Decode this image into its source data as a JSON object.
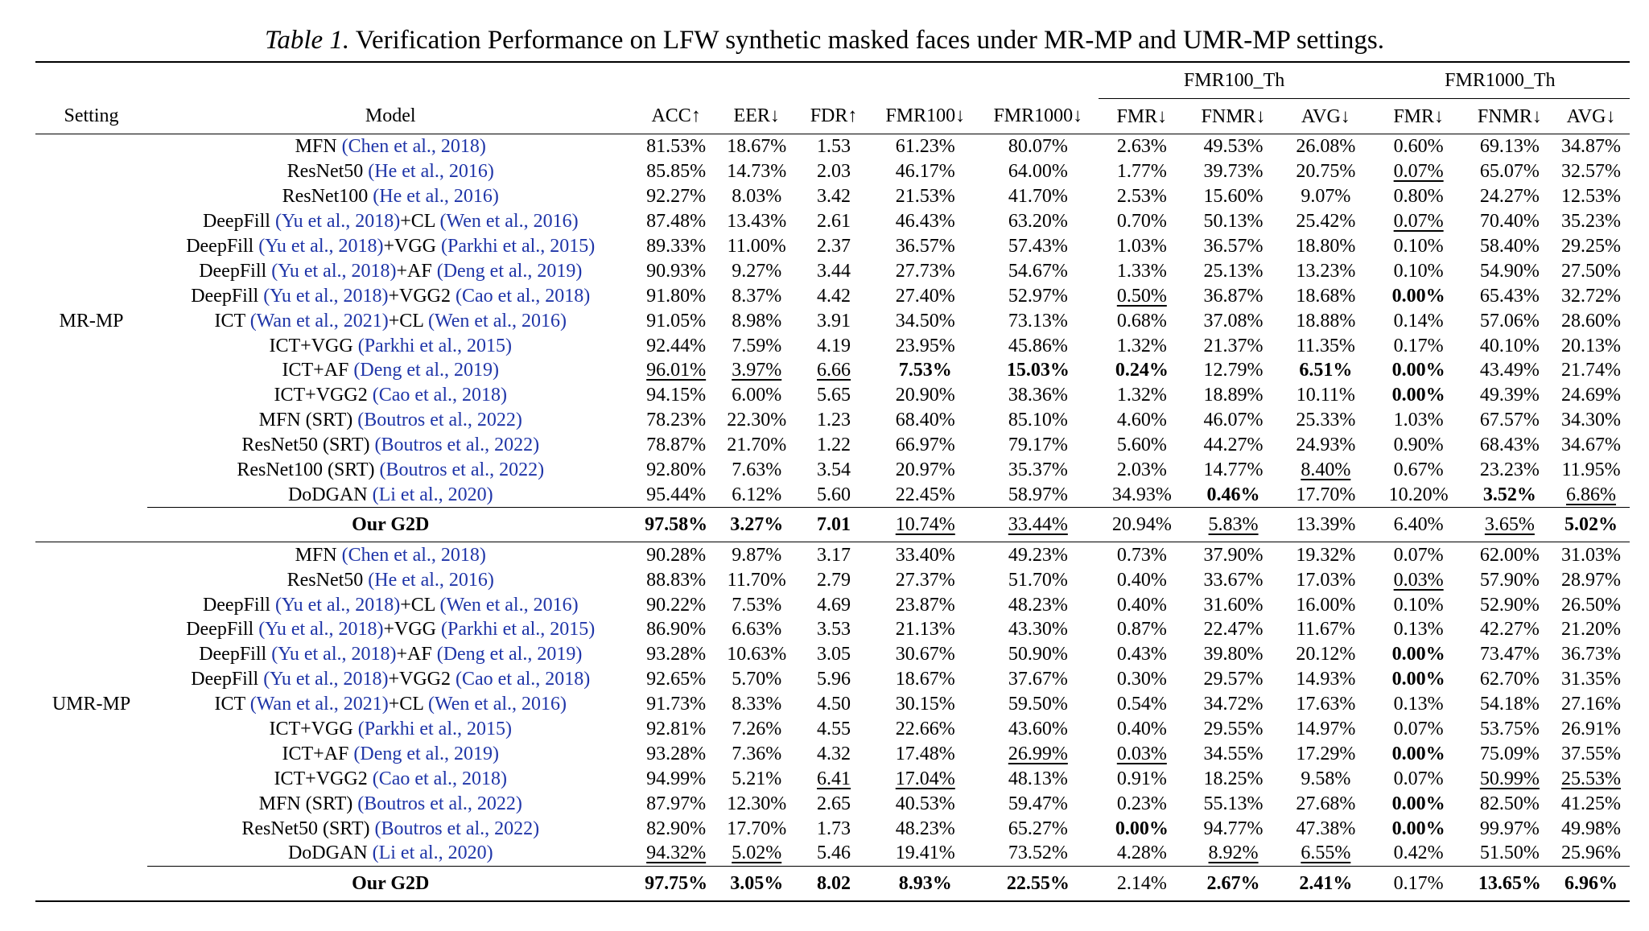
{
  "caption": {
    "label": "Table 1.",
    "text": "Verification Performance on LFW synthetic masked faces under MR-MP and UMR-MP settings."
  },
  "header": {
    "setting": "Setting",
    "model": "Model",
    "group1": "FMR100_Th",
    "group2": "FMR1000_Th",
    "cols": [
      "ACC↑",
      "EER↓",
      "FDR↑",
      "FMR100↓",
      "FMR1000↓",
      "FMR↓",
      "FNMR↓",
      "AVG↓",
      "FMR↓",
      "FNMR↓",
      "AVG↓"
    ]
  },
  "sections": [
    {
      "setting": "MR-MP",
      "rows": [
        {
          "name": [
            {
              "t": "MFN "
            },
            {
              "t": "(Chen et al., 2018)",
              "c": 1
            }
          ],
          "v": [
            "81.53%",
            "18.67%",
            "1.53",
            "61.23%",
            "80.07%",
            "2.63%",
            "49.53%",
            "26.08%",
            "0.60%",
            "69.13%",
            "34.87%"
          ]
        },
        {
          "name": [
            {
              "t": "ResNet50 "
            },
            {
              "t": "(He et al., 2016)",
              "c": 1
            }
          ],
          "v": [
            "85.85%",
            "14.73%",
            "2.03",
            "46.17%",
            "64.00%",
            "1.77%",
            "39.73%",
            "20.75%",
            "0.07%",
            "65.07%",
            "32.57%"
          ],
          "u": [
            8
          ]
        },
        {
          "name": [
            {
              "t": "ResNet100 "
            },
            {
              "t": "(He et al., 2016)",
              "c": 1
            }
          ],
          "v": [
            "92.27%",
            "8.03%",
            "3.42",
            "21.53%",
            "41.70%",
            "2.53%",
            "15.60%",
            "9.07%",
            "0.80%",
            "24.27%",
            "12.53%"
          ]
        },
        {
          "name": [
            {
              "t": "DeepFill "
            },
            {
              "t": "(Yu et al., 2018)",
              "c": 1
            },
            {
              "t": "+CL "
            },
            {
              "t": "(Wen et al., 2016)",
              "c": 1
            }
          ],
          "v": [
            "87.48%",
            "13.43%",
            "2.61",
            "46.43%",
            "63.20%",
            "0.70%",
            "50.13%",
            "25.42%",
            "0.07%",
            "70.40%",
            "35.23%"
          ],
          "u": [
            8
          ]
        },
        {
          "name": [
            {
              "t": "DeepFill "
            },
            {
              "t": "(Yu et al., 2018)",
              "c": 1
            },
            {
              "t": "+VGG "
            },
            {
              "t": "(Parkhi et al., 2015)",
              "c": 1
            }
          ],
          "v": [
            "89.33%",
            "11.00%",
            "2.37",
            "36.57%",
            "57.43%",
            "1.03%",
            "36.57%",
            "18.80%",
            "0.10%",
            "58.40%",
            "29.25%"
          ]
        },
        {
          "name": [
            {
              "t": "DeepFill "
            },
            {
              "t": "(Yu et al., 2018)",
              "c": 1
            },
            {
              "t": "+AF "
            },
            {
              "t": "(Deng et al., 2019)",
              "c": 1
            }
          ],
          "v": [
            "90.93%",
            "9.27%",
            "3.44",
            "27.73%",
            "54.67%",
            "1.33%",
            "25.13%",
            "13.23%",
            "0.10%",
            "54.90%",
            "27.50%"
          ]
        },
        {
          "name": [
            {
              "t": "DeepFill "
            },
            {
              "t": "(Yu et al., 2018)",
              "c": 1
            },
            {
              "t": "+VGG2 "
            },
            {
              "t": "(Cao et al., 2018)",
              "c": 1
            }
          ],
          "v": [
            "91.80%",
            "8.37%",
            "4.42",
            "27.40%",
            "52.97%",
            "0.50%",
            "36.87%",
            "18.68%",
            "0.00%",
            "65.43%",
            "32.72%"
          ],
          "u": [
            5
          ],
          "b": [
            8
          ]
        },
        {
          "name": [
            {
              "t": "ICT "
            },
            {
              "t": "(Wan et al., 2021)",
              "c": 1
            },
            {
              "t": "+CL "
            },
            {
              "t": "(Wen et al., 2016)",
              "c": 1
            }
          ],
          "v": [
            "91.05%",
            "8.98%",
            "3.91",
            "34.50%",
            "73.13%",
            "0.68%",
            "37.08%",
            "18.88%",
            "0.14%",
            "57.06%",
            "28.60%"
          ]
        },
        {
          "name": [
            {
              "t": "ICT+VGG "
            },
            {
              "t": "(Parkhi et al., 2015)",
              "c": 1
            }
          ],
          "v": [
            "92.44%",
            "7.59%",
            "4.19",
            "23.95%",
            "45.86%",
            "1.32%",
            "21.37%",
            "11.35%",
            "0.17%",
            "40.10%",
            "20.13%"
          ]
        },
        {
          "name": [
            {
              "t": "ICT+AF "
            },
            {
              "t": "(Deng et al., 2019)",
              "c": 1
            }
          ],
          "v": [
            "96.01%",
            "3.97%",
            "6.66",
            "7.53%",
            "15.03%",
            "0.24%",
            "12.79%",
            "6.51%",
            "0.00%",
            "43.49%",
            "21.74%"
          ],
          "u": [
            0,
            1,
            2
          ],
          "b": [
            3,
            4,
            5,
            7,
            8
          ]
        },
        {
          "name": [
            {
              "t": "ICT+VGG2 "
            },
            {
              "t": "(Cao et al., 2018)",
              "c": 1
            }
          ],
          "v": [
            "94.15%",
            "6.00%",
            "5.65",
            "20.90%",
            "38.36%",
            "1.32%",
            "18.89%",
            "10.11%",
            "0.00%",
            "49.39%",
            "24.69%"
          ],
          "b": [
            8
          ]
        },
        {
          "name": [
            {
              "t": "MFN (SRT) "
            },
            {
              "t": "(Boutros et al., 2022)",
              "c": 1
            }
          ],
          "v": [
            "78.23%",
            "22.30%",
            "1.23",
            "68.40%",
            "85.10%",
            "4.60%",
            "46.07%",
            "25.33%",
            "1.03%",
            "67.57%",
            "34.30%"
          ]
        },
        {
          "name": [
            {
              "t": "ResNet50 (SRT) "
            },
            {
              "t": "(Boutros et al., 2022)",
              "c": 1
            }
          ],
          "v": [
            "78.87%",
            "21.70%",
            "1.22",
            "66.97%",
            "79.17%",
            "5.60%",
            "44.27%",
            "24.93%",
            "0.90%",
            "68.43%",
            "34.67%"
          ]
        },
        {
          "name": [
            {
              "t": "ResNet100 (SRT) "
            },
            {
              "t": "(Boutros et al., 2022)",
              "c": 1
            }
          ],
          "v": [
            "92.80%",
            "7.63%",
            "3.54",
            "20.97%",
            "35.37%",
            "2.03%",
            "14.77%",
            "8.40%",
            "0.67%",
            "23.23%",
            "11.95%"
          ],
          "u": [
            7
          ]
        },
        {
          "name": [
            {
              "t": "DoDGAN "
            },
            {
              "t": "(Li et al., 2020)",
              "c": 1
            }
          ],
          "v": [
            "95.44%",
            "6.12%",
            "5.60",
            "22.45%",
            "58.97%",
            "34.93%",
            "0.46%",
            "17.70%",
            "10.20%",
            "3.52%",
            "6.86%"
          ],
          "b": [
            6,
            9
          ],
          "u": [
            10
          ]
        }
      ],
      "ours": {
        "name": "Our G2D",
        "v": [
          "97.58%",
          "3.27%",
          "7.01",
          "10.74%",
          "33.44%",
          "20.94%",
          "5.83%",
          "13.39%",
          "6.40%",
          "3.65%",
          "5.02%"
        ],
        "b": [
          0,
          1,
          2,
          10
        ],
        "u": [
          3,
          4,
          6,
          9
        ]
      }
    },
    {
      "setting": "UMR-MP",
      "rows": [
        {
          "name": [
            {
              "t": "MFN "
            },
            {
              "t": "(Chen et al., 2018)",
              "c": 1
            }
          ],
          "v": [
            "90.28%",
            "9.87%",
            "3.17",
            "33.40%",
            "49.23%",
            "0.73%",
            "37.90%",
            "19.32%",
            "0.07%",
            "62.00%",
            "31.03%"
          ]
        },
        {
          "name": [
            {
              "t": "ResNet50 "
            },
            {
              "t": "(He et al., 2016)",
              "c": 1
            }
          ],
          "v": [
            "88.83%",
            "11.70%",
            "2.79",
            "27.37%",
            "51.70%",
            "0.40%",
            "33.67%",
            "17.03%",
            "0.03%",
            "57.90%",
            "28.97%"
          ],
          "u": [
            8
          ]
        },
        {
          "name": [
            {
              "t": "DeepFill "
            },
            {
              "t": "(Yu et al., 2018)",
              "c": 1
            },
            {
              "t": "+CL "
            },
            {
              "t": "(Wen et al., 2016)",
              "c": 1
            }
          ],
          "v": [
            "90.22%",
            "7.53%",
            "4.69",
            "23.87%",
            "48.23%",
            "0.40%",
            "31.60%",
            "16.00%",
            "0.10%",
            "52.90%",
            "26.50%"
          ]
        },
        {
          "name": [
            {
              "t": "DeepFill "
            },
            {
              "t": "(Yu et al., 2018)",
              "c": 1
            },
            {
              "t": "+VGG "
            },
            {
              "t": "(Parkhi et al., 2015)",
              "c": 1
            }
          ],
          "v": [
            "86.90%",
            "6.63%",
            "3.53",
            "21.13%",
            "43.30%",
            "0.87%",
            "22.47%",
            "11.67%",
            "0.13%",
            "42.27%",
            "21.20%"
          ]
        },
        {
          "name": [
            {
              "t": "DeepFill "
            },
            {
              "t": "(Yu et al., 2018)",
              "c": 1
            },
            {
              "t": "+AF "
            },
            {
              "t": "(Deng et al., 2019)",
              "c": 1
            }
          ],
          "v": [
            "93.28%",
            "10.63%",
            "3.05",
            "30.67%",
            "50.90%",
            "0.43%",
            "39.80%",
            "20.12%",
            "0.00%",
            "73.47%",
            "36.73%"
          ],
          "b": [
            8
          ]
        },
        {
          "name": [
            {
              "t": "DeepFill "
            },
            {
              "t": "(Yu et al., 2018)",
              "c": 1
            },
            {
              "t": "+VGG2 "
            },
            {
              "t": "(Cao et al., 2018)",
              "c": 1
            }
          ],
          "v": [
            "92.65%",
            "5.70%",
            "5.96",
            "18.67%",
            "37.67%",
            "0.30%",
            "29.57%",
            "14.93%",
            "0.00%",
            "62.70%",
            "31.35%"
          ],
          "b": [
            8
          ]
        },
        {
          "name": [
            {
              "t": "ICT "
            },
            {
              "t": "(Wan et al., 2021)",
              "c": 1
            },
            {
              "t": "+CL "
            },
            {
              "t": "(Wen et al., 2016)",
              "c": 1
            }
          ],
          "v": [
            "91.73%",
            "8.33%",
            "4.50",
            "30.15%",
            "59.50%",
            "0.54%",
            "34.72%",
            "17.63%",
            "0.13%",
            "54.18%",
            "27.16%"
          ]
        },
        {
          "name": [
            {
              "t": "ICT+VGG "
            },
            {
              "t": "(Parkhi et al., 2015)",
              "c": 1
            }
          ],
          "v": [
            "92.81%",
            "7.26%",
            "4.55",
            "22.66%",
            "43.60%",
            "0.40%",
            "29.55%",
            "14.97%",
            "0.07%",
            "53.75%",
            "26.91%"
          ]
        },
        {
          "name": [
            {
              "t": "ICT+AF "
            },
            {
              "t": "(Deng et al., 2019)",
              "c": 1
            }
          ],
          "v": [
            "93.28%",
            "7.36%",
            "4.32",
            "17.48%",
            "26.99%",
            "0.03%",
            "34.55%",
            "17.29%",
            "0.00%",
            "75.09%",
            "37.55%"
          ],
          "u": [
            4,
            5
          ],
          "b": [
            8
          ]
        },
        {
          "name": [
            {
              "t": "ICT+VGG2 "
            },
            {
              "t": "(Cao et al., 2018)",
              "c": 1
            }
          ],
          "v": [
            "94.99%",
            "5.21%",
            "6.41",
            "17.04%",
            "48.13%",
            "0.91%",
            "18.25%",
            "9.58%",
            "0.07%",
            "50.99%",
            "25.53%"
          ],
          "u": [
            2,
            3,
            9,
            10
          ]
        },
        {
          "name": [
            {
              "t": "MFN (SRT) "
            },
            {
              "t": "(Boutros et al., 2022)",
              "c": 1
            }
          ],
          "v": [
            "87.97%",
            "12.30%",
            "2.65",
            "40.53%",
            "59.47%",
            "0.23%",
            "55.13%",
            "27.68%",
            "0.00%",
            "82.50%",
            "41.25%"
          ],
          "b": [
            8
          ]
        },
        {
          "name": [
            {
              "t": "ResNet50 (SRT) "
            },
            {
              "t": "(Boutros et al., 2022)",
              "c": 1
            }
          ],
          "v": [
            "82.90%",
            "17.70%",
            "1.73",
            "48.23%",
            "65.27%",
            "0.00%",
            "94.77%",
            "47.38%",
            "0.00%",
            "99.97%",
            "49.98%"
          ],
          "b": [
            5,
            8
          ]
        },
        {
          "name": [
            {
              "t": "DoDGAN "
            },
            {
              "t": "(Li et al., 2020)",
              "c": 1
            }
          ],
          "v": [
            "94.32%",
            "5.02%",
            "5.46",
            "19.41%",
            "73.52%",
            "4.28%",
            "8.92%",
            "6.55%",
            "0.42%",
            "51.50%",
            "25.96%"
          ],
          "u": [
            0,
            1,
            6,
            7
          ]
        }
      ],
      "ours": {
        "name": "Our G2D",
        "v": [
          "97.75%",
          "3.05%",
          "8.02",
          "8.93%",
          "22.55%",
          "2.14%",
          "2.67%",
          "2.41%",
          "0.17%",
          "13.65%",
          "6.96%"
        ],
        "b": [
          0,
          1,
          2,
          3,
          4,
          6,
          7,
          9,
          10
        ]
      }
    }
  ]
}
